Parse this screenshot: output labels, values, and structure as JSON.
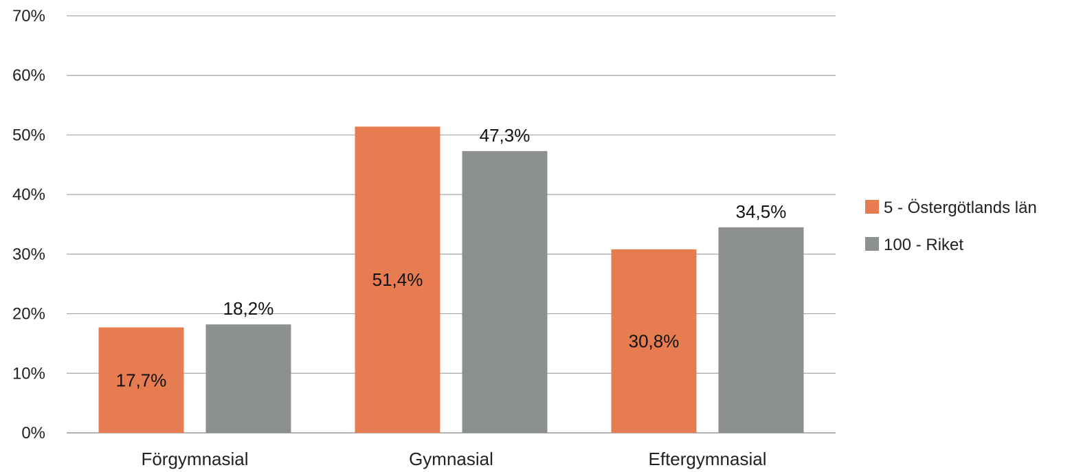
{
  "chart_data": {
    "type": "bar",
    "categories": [
      "Förgymnasial",
      "Gymnasial",
      "Eftergymnasial"
    ],
    "series": [
      {
        "name": "5 - Östergötlands län",
        "color": "#E67C50",
        "values": [
          17.7,
          51.4,
          30.8
        ],
        "labels": [
          "17,7%",
          "51,4%",
          "30,8%"
        ],
        "label_position": "inside"
      },
      {
        "name": "100 - Riket",
        "color": "#8C918F",
        "values": [
          18.2,
          47.3,
          34.5
        ],
        "labels": [
          "18,2%",
          "47,3%",
          "34,5%"
        ],
        "label_position": "above"
      }
    ],
    "y_ticks": [
      0,
      10,
      20,
      30,
      40,
      50,
      60,
      70
    ],
    "y_tick_labels": [
      "0%",
      "10%",
      "20%",
      "30%",
      "40%",
      "50%",
      "60%",
      "70%"
    ],
    "ylim": [
      0,
      70
    ],
    "grid": true,
    "legend_position": "right",
    "title": "",
    "xlabel": "",
    "ylabel": ""
  }
}
